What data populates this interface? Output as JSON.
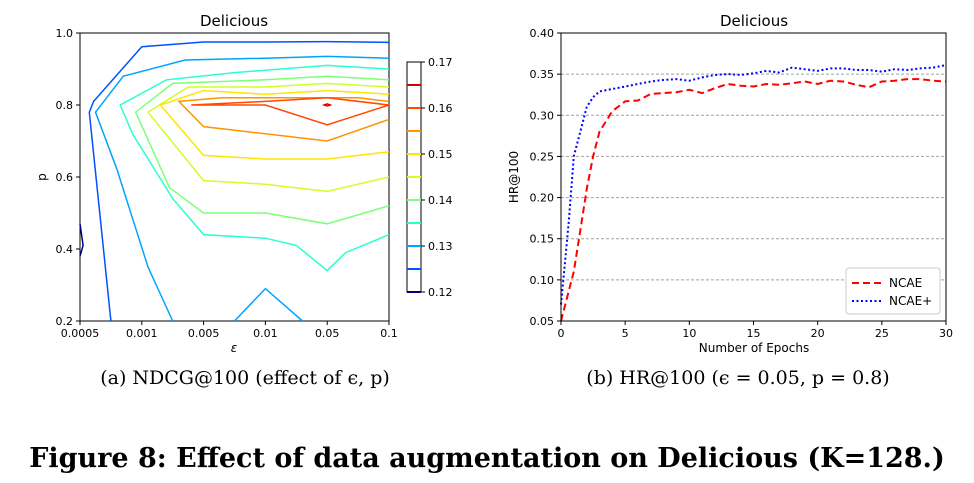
{
  "figure_caption": "Figure 8: Effect of data augmentation on Delicious (K=128.)",
  "chart_data": [
    {
      "type": "contour",
      "title": "Delicious",
      "xlabel": "ε",
      "ylabel": "p",
      "subcaption": "(a) NDCG@100 (effect of ϵ, p)",
      "x_ticks": [
        "0.0005",
        "0.001",
        "0.005",
        "0.01",
        "0.05",
        "0.1"
      ],
      "y_ticks": [
        "0.2",
        "0.4",
        "0.6",
        "0.8",
        "1.0"
      ],
      "ylim": [
        0.2,
        1.0
      ],
      "colorbar_ticks": [
        "0.12",
        "0.13",
        "0.14",
        "0.15",
        "0.16",
        "0.17"
      ],
      "colorbar_range": [
        0.115,
        0.17
      ],
      "contours": [
        {
          "level": 0.12,
          "color": "#00007f",
          "points": [
            [
              0,
              0.47
            ],
            [
              0.15,
              0.4
            ],
            [
              0,
              0.38
            ]
          ]
        },
        {
          "level": 0.125,
          "color": "#0052ff",
          "points": [
            [
              1.03,
              0.963
            ],
            [
              1.1,
              0.974
            ],
            [
              3,
              0.978
            ],
            [
              4,
              0.983
            ],
            [
              5,
              0.978
            ]
          ],
          "closed": false,
          "front": [
            [
              0.22,
              0.8
            ],
            [
              0.3,
              0.82
            ],
            [
              0,
              0.2
            ]
          ]
        },
        {
          "level": 0.13,
          "color": "#00a4ff"
        },
        {
          "level": 0.135,
          "color": "#29ffce"
        },
        {
          "level": 0.14,
          "color": "#7dff7a"
        },
        {
          "level": 0.145,
          "color": "#ceff29"
        },
        {
          "level": 0.15,
          "color": "#ffe500"
        },
        {
          "level": 0.155,
          "color": "#ff9400"
        },
        {
          "level": 0.16,
          "color": "#ff4800"
        },
        {
          "level": 0.165,
          "color": "#d40000"
        }
      ]
    },
    {
      "type": "line",
      "title": "Delicious",
      "xlabel": "Number of Epochs",
      "ylabel": "HR@100",
      "subcaption": "(b) HR@100 (ϵ = 0.05, p = 0.8)",
      "xlim": [
        0,
        30
      ],
      "ylim": [
        0.05,
        0.4
      ],
      "x_ticks": [
        "0",
        "5",
        "10",
        "15",
        "20",
        "25",
        "30"
      ],
      "y_ticks": [
        "0.05",
        "0.10",
        "0.15",
        "0.20",
        "0.25",
        "0.30",
        "0.35",
        "0.40"
      ],
      "grid": "horizontal-dashed",
      "legend": "bottom-right",
      "series": [
        {
          "name": "NCAE",
          "color": "#ff0000",
          "style": "dashed",
          "x": [
            0,
            0.5,
            1,
            1.5,
            2,
            2.5,
            3,
            4,
            5,
            6,
            7,
            8,
            9,
            10,
            11,
            12,
            13,
            14,
            15,
            16,
            17,
            18,
            19,
            20,
            21,
            22,
            23,
            24,
            25,
            26,
            27,
            28,
            29,
            30
          ],
          "y": [
            0.05,
            0.08,
            0.11,
            0.16,
            0.21,
            0.25,
            0.28,
            0.305,
            0.317,
            0.318,
            0.326,
            0.327,
            0.328,
            0.331,
            0.327,
            0.333,
            0.338,
            0.336,
            0.335,
            0.338,
            0.337,
            0.339,
            0.341,
            0.338,
            0.342,
            0.341,
            0.337,
            0.334,
            0.341,
            0.342,
            0.344,
            0.344,
            0.342,
            0.341
          ]
        },
        {
          "name": "NCAE+",
          "color": "#0000ff",
          "style": "dotted",
          "x": [
            0,
            0.3,
            0.6,
            1,
            1.5,
            2,
            2.5,
            3,
            4,
            5,
            6,
            7,
            8,
            9,
            10,
            11,
            12,
            13,
            14,
            15,
            16,
            17,
            18,
            19,
            20,
            21,
            22,
            23,
            24,
            25,
            26,
            27,
            28,
            29,
            30
          ],
          "y": [
            0.07,
            0.12,
            0.17,
            0.25,
            0.28,
            0.31,
            0.322,
            0.329,
            0.332,
            0.335,
            0.338,
            0.341,
            0.343,
            0.344,
            0.342,
            0.346,
            0.349,
            0.35,
            0.349,
            0.351,
            0.354,
            0.352,
            0.358,
            0.356,
            0.354,
            0.357,
            0.357,
            0.355,
            0.355,
            0.353,
            0.356,
            0.355,
            0.357,
            0.358,
            0.361
          ]
        }
      ]
    }
  ]
}
